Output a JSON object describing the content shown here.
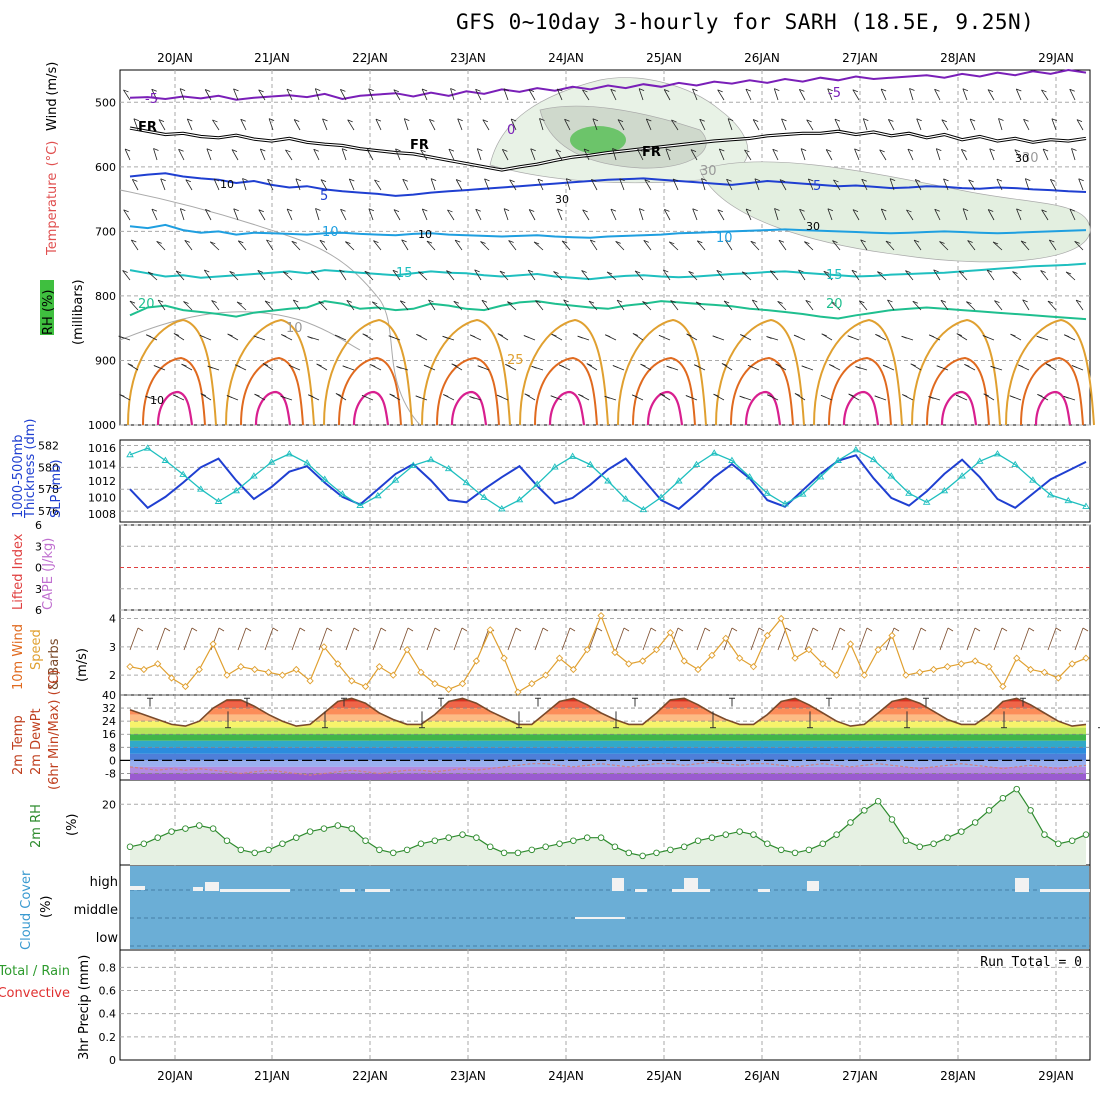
{
  "title": "GFS 0~10day 3-hourly for SARH (18.5E, 9.25N)",
  "days": [
    "20JAN",
    "21JAN",
    "22JAN",
    "23JAN",
    "24JAN",
    "25JAN",
    "26JAN",
    "27JAN",
    "28JAN",
    "29JAN"
  ],
  "colors": {
    "purple": "#7a1fb8",
    "black": "#000000",
    "blue": "#1f3fd1",
    "lightblue": "#1f9fe0",
    "teal": "#1fbfbf",
    "green": "#1fbf8f",
    "orange": "#e0a030",
    "darkorange": "#e06a1f",
    "magenta": "#d81f8f",
    "rhgreen": "#3fbf3f",
    "cloud": "#6baed6",
    "precipgrid": "#999999"
  },
  "chart_data": [
    {
      "type": "line",
      "panel": "upper-air",
      "ylabels": [
        "Wind",
        "(m/s)",
        "Temperature",
        "(°C)",
        "(millibars)",
        "RH (%)"
      ],
      "yticks": [
        500,
        600,
        700,
        800,
        900,
        1000
      ],
      "ylim": [
        1000,
        450
      ],
      "contour_labels": [
        {
          "text": "-5",
          "color": "purple"
        },
        {
          "text": "-5",
          "color": "purple"
        },
        {
          "text": "0",
          "color": "purple"
        },
        {
          "text": "FR",
          "color": "black"
        },
        {
          "text": "FR",
          "color": "black"
        },
        {
          "text": "FR",
          "color": "black"
        },
        {
          "text": "5",
          "color": "blue"
        },
        {
          "text": "5",
          "color": "blue"
        },
        {
          "text": "10",
          "color": "lightblue"
        },
        {
          "text": "10",
          "color": "lightblue"
        },
        {
          "text": "15",
          "color": "teal"
        },
        {
          "text": "15",
          "color": "teal"
        },
        {
          "text": "20",
          "color": "green"
        },
        {
          "text": "20",
          "color": "green"
        },
        {
          "text": "25",
          "color": "orange"
        },
        {
          "text": "30",
          "color": "gray"
        },
        {
          "text": "30",
          "color": "gray"
        },
        {
          "text": "10",
          "color": "gray"
        }
      ],
      "series": [
        {
          "level": "-5",
          "color": "purple",
          "values": [
            493,
            492,
            495,
            491,
            494,
            490,
            496,
            493,
            491,
            489,
            492,
            487,
            495,
            490,
            488,
            486,
            491,
            485,
            490,
            483,
            487,
            480,
            484,
            478,
            482,
            476,
            480,
            474,
            478,
            472,
            476,
            470,
            474,
            468,
            471,
            466,
            470,
            464,
            468,
            462,
            466,
            460,
            464,
            462,
            460,
            458,
            462,
            456,
            460,
            454,
            458,
            452,
            456,
            450,
            454
          ]
        },
        {
          "level": "FR",
          "color": "black",
          "values": [
            540,
            545,
            550,
            548,
            553,
            555,
            551,
            557,
            560,
            556,
            562,
            565,
            567,
            572,
            575,
            578,
            580,
            585,
            590,
            595,
            600,
            605,
            600,
            596,
            590,
            585,
            582,
            578,
            575,
            572,
            569,
            566,
            563,
            560,
            558,
            556,
            552,
            550,
            548,
            548,
            545,
            550,
            546,
            552,
            548,
            555,
            550,
            558,
            553,
            560,
            556,
            562,
            558,
            560,
            556
          ]
        },
        {
          "level": "5",
          "color": "blue",
          "values": [
            615,
            612,
            610,
            615,
            618,
            620,
            625,
            622,
            628,
            632,
            630,
            635,
            638,
            640,
            642,
            645,
            643,
            640,
            638,
            636,
            634,
            632,
            630,
            628,
            626,
            624,
            622,
            620,
            619,
            618,
            620,
            622,
            624,
            626,
            628,
            625,
            622,
            624,
            626,
            628,
            630,
            629,
            631,
            633,
            632,
            630,
            631,
            633,
            634,
            632,
            633,
            635,
            636,
            638,
            639
          ]
        },
        {
          "level": "10",
          "color": "lightblue",
          "values": [
            692,
            695,
            690,
            698,
            702,
            700,
            705,
            702,
            703,
            704,
            705,
            703,
            702,
            704,
            705,
            706,
            704,
            703,
            705,
            706,
            707,
            708,
            707,
            706,
            708,
            709,
            710,
            708,
            707,
            706,
            705,
            703,
            702,
            701,
            700,
            699,
            698,
            697,
            698,
            699,
            700,
            701,
            702,
            703,
            702,
            701,
            700,
            701,
            702,
            703,
            702,
            701,
            700,
            699,
            698
          ]
        },
        {
          "level": "15",
          "color": "teal",
          "values": [
            760,
            765,
            770,
            768,
            772,
            770,
            768,
            766,
            764,
            762,
            765,
            760,
            762,
            764,
            766,
            768,
            765,
            762,
            764,
            765,
            768,
            770,
            768,
            766,
            770,
            772,
            774,
            771,
            769,
            768,
            770,
            771,
            770,
            768,
            766,
            765,
            763,
            762,
            764,
            766,
            768,
            770,
            769,
            767,
            766,
            765,
            764,
            762,
            760,
            758,
            756,
            754,
            753,
            752,
            750
          ]
        },
        {
          "level": "20",
          "color": "green",
          "values": [
            830,
            818,
            815,
            822,
            825,
            828,
            832,
            826,
            823,
            820,
            818,
            808,
            812,
            820,
            818,
            822,
            820,
            812,
            815,
            820,
            822,
            815,
            810,
            808,
            812,
            815,
            818,
            820,
            815,
            812,
            808,
            810,
            812,
            814,
            816,
            820,
            822,
            825,
            828,
            832,
            835,
            830,
            826,
            822,
            820,
            818,
            820,
            822,
            824,
            826,
            828,
            830,
            832,
            834,
            836
          ]
        }
      ],
      "rh_labels": [
        "30",
        "30",
        "30",
        "10",
        "10",
        "10"
      ]
    },
    {
      "type": "line",
      "panel": "thickness-slp",
      "ylabels_left": [
        "1000-500mb",
        "Thickness (dm)"
      ],
      "ylabels_right": [
        "SLP (mb)"
      ],
      "yticks_left": [
        576,
        578,
        580,
        582
      ],
      "yticks_right": [
        1008,
        1010,
        1012,
        1014,
        1016
      ],
      "series": [
        {
          "name": "Thickness",
          "color": "blue",
          "values": [
            578.0,
            576.3,
            577.3,
            578.6,
            580.0,
            580.8,
            578.8,
            577.1,
            578.2,
            579.6,
            580.1,
            578.6,
            577.3,
            576.6,
            578.0,
            579.4,
            580.3,
            578.8,
            577.0,
            576.8,
            578.0,
            579.1,
            580.1,
            578.3,
            576.7,
            577.2,
            578.4,
            579.8,
            580.8,
            578.9,
            577.0,
            576.2,
            577.6,
            579.1,
            580.3,
            579.0,
            577.0,
            576.4,
            577.9,
            579.4,
            580.6,
            581.1,
            579.0,
            577.2,
            576.5,
            577.8,
            579.4,
            580.7,
            579.1,
            577.1,
            576.3,
            577.6,
            578.9,
            579.7,
            580.5
          ]
        },
        {
          "name": "SLP",
          "color": "teal",
          "values": [
            1015.2,
            1016.0,
            1014.5,
            1012.8,
            1011.0,
            1009.5,
            1010.8,
            1012.6,
            1014.3,
            1015.3,
            1014.2,
            1012.2,
            1010.4,
            1009.0,
            1010.2,
            1012.1,
            1013.9,
            1014.6,
            1013.5,
            1011.8,
            1010.0,
            1008.6,
            1009.7,
            1011.6,
            1013.7,
            1015.0,
            1014.0,
            1012.0,
            1009.8,
            1008.5,
            1010.0,
            1012.0,
            1014.0,
            1015.4,
            1014.5,
            1012.5,
            1010.5,
            1009.2,
            1010.4,
            1012.5,
            1014.5,
            1015.8,
            1014.6,
            1012.6,
            1010.5,
            1009.4,
            1010.8,
            1012.6,
            1014.4,
            1015.3,
            1014.0,
            1012.1,
            1010.3,
            1009.6,
            1008.9
          ]
        }
      ]
    },
    {
      "type": "line",
      "panel": "cape-li",
      "ylabels": [
        "Lifted Index",
        "CAPE (J/kg)"
      ],
      "yticks": [
        6,
        3,
        0,
        -3,
        -6
      ],
      "yticklabels": [
        "6",
        "3",
        "0",
        "3",
        "6"
      ],
      "ylim": [
        -6,
        6
      ],
      "zero_line": 0
    },
    {
      "type": "line",
      "panel": "wind10m",
      "ylabels": [
        "10m Wind",
        "Speed",
        "& Barbs",
        "(m/s)"
      ],
      "yticks": [
        2,
        3,
        4
      ],
      "ylim": [
        1.3,
        4.3
      ],
      "series": [
        {
          "name": "Speed",
          "color": "orange",
          "values": [
            2.3,
            2.2,
            2.4,
            1.9,
            1.6,
            2.2,
            3.1,
            2.0,
            2.3,
            2.2,
            2.1,
            2.0,
            2.2,
            1.8,
            3.0,
            2.4,
            1.8,
            1.6,
            2.3,
            2.0,
            2.9,
            2.1,
            1.7,
            1.5,
            1.7,
            2.5,
            3.6,
            2.6,
            1.4,
            1.7,
            2.0,
            2.6,
            2.2,
            2.9,
            4.1,
            2.8,
            2.4,
            2.5,
            2.9,
            3.5,
            2.5,
            2.2,
            2.7,
            3.3,
            2.6,
            2.3,
            3.4,
            4.0,
            2.6,
            2.9,
            2.4,
            2.0,
            3.1,
            2.0,
            2.9,
            3.4,
            2.0,
            2.1,
            2.2,
            2.3,
            2.4,
            2.5,
            2.3,
            1.6,
            2.6,
            2.2,
            2.1,
            1.9,
            2.4,
            2.6
          ]
        }
      ]
    },
    {
      "type": "area",
      "panel": "temperature",
      "ylabels": [
        "2m Temp",
        "2m DewPt",
        "(6hr Min/Max) (°C)"
      ],
      "yticks": [
        40,
        32,
        24,
        16,
        8,
        0,
        -8
      ],
      "ylim": [
        -12,
        40
      ],
      "series": [
        {
          "name": "2m Temp",
          "color": "brown",
          "values": [
            31,
            28,
            25,
            22,
            21,
            24,
            32,
            37,
            37,
            33,
            28,
            24,
            21,
            22,
            29,
            36,
            38,
            35,
            29,
            25,
            22,
            22,
            28,
            36,
            38,
            35,
            30,
            26,
            22,
            22,
            29,
            36,
            38,
            34,
            29,
            25,
            22,
            22,
            29,
            37,
            38,
            34,
            29,
            25,
            22,
            22,
            28,
            36,
            38,
            34,
            29,
            24,
            21,
            22,
            29,
            36,
            38,
            35,
            30,
            25,
            22,
            22,
            28,
            36,
            38,
            34,
            29,
            24,
            21,
            22
          ]
        },
        {
          "name": "2m DewPt",
          "color": "pink",
          "values": [
            -4,
            -5,
            -6,
            -5,
            -6,
            -5,
            -6,
            -7,
            -8,
            -7,
            -6,
            -7,
            -8,
            -9,
            -8,
            -7,
            -6,
            -7,
            -8,
            -7,
            -6,
            -6,
            -7,
            -6,
            -5,
            -6,
            -5,
            -4,
            -3,
            -2,
            -2,
            -3,
            -4,
            -3,
            -2,
            -3,
            -4,
            -3,
            -2,
            -2,
            -3,
            -2,
            -1,
            -2,
            -3,
            -2,
            -2,
            -3,
            -4,
            -3,
            -2,
            -3,
            -4,
            -3,
            -2,
            -3,
            -4,
            -5,
            -4,
            -3,
            -2,
            -3,
            -4,
            -5,
            -4,
            -3,
            -4,
            -5,
            -4,
            -3
          ]
        }
      ]
    },
    {
      "type": "area",
      "panel": "rh",
      "ylabels": [
        "2m RH",
        "(%)"
      ],
      "yticks": [
        20
      ],
      "ylim": [
        0,
        28
      ],
      "series": [
        {
          "name": "2m RH",
          "color": "green",
          "values": [
            6,
            7,
            9,
            11,
            12,
            13,
            12,
            8,
            5,
            4,
            5,
            7,
            9,
            11,
            12,
            13,
            12,
            8,
            5,
            4,
            5,
            7,
            8,
            9,
            10,
            9,
            6,
            4,
            4,
            5,
            6,
            7,
            8,
            9,
            9,
            6,
            4,
            3,
            4,
            5,
            6,
            8,
            9,
            10,
            11,
            10,
            7,
            5,
            4,
            5,
            7,
            10,
            14,
            18,
            21,
            15,
            8,
            6,
            7,
            9,
            11,
            14,
            18,
            22,
            25,
            18,
            10,
            7,
            8,
            10
          ]
        }
      ]
    },
    {
      "type": "table",
      "panel": "cloud",
      "ylabels": [
        "Cloud Cover",
        "(%)"
      ],
      "levels": [
        "high",
        "middle",
        "low"
      ]
    },
    {
      "type": "bar",
      "panel": "precip",
      "ylabels": [
        "Total / Rain",
        "Convective",
        "3hr Precip (mm)"
      ],
      "yticks": [
        0,
        0.2,
        0.4,
        0.6,
        0.8
      ],
      "yticklabels": [
        "0",
        "0.2",
        "0.4",
        "0.6",
        "0.8"
      ],
      "ylim": [
        0,
        0.95
      ],
      "run_total": "Run Total = 0"
    }
  ]
}
